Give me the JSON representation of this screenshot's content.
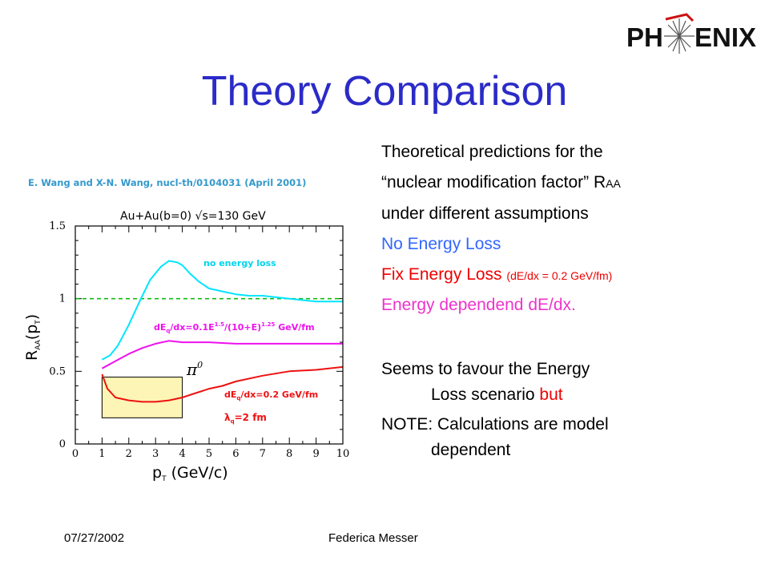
{
  "slide": {
    "title": "Theory Comparison",
    "logo": {
      "left": "PH",
      "right": "ENIX"
    },
    "citation": "E. Wang and X-N. Wang, nucl-th/0104031 (April 2001)",
    "footer": {
      "date": "07/27/2002",
      "author": "Federica Messer"
    }
  },
  "bullets": {
    "line1": "Theoretical predictions for the",
    "line2": "“nuclear modification factor” R",
    "line2_sub": "AA",
    "line3": " under different assumptions",
    "no_loss": "No Energy Loss",
    "fix_loss": "Fix Energy Loss ",
    "fix_loss_note": "(dE/dx = 0.2 GeV/fm)",
    "energy_dep": "Energy dependend dE/dx.",
    "seems_1": "Seems to favour the Energy",
    "seems_2": "Loss scenario ",
    "seems_but": "but",
    "note_1": "NOTE: Calculations are model",
    "note_2": "dependent"
  },
  "chart_data": {
    "type": "line",
    "header": "Au+Au(b=0)  √s=130 GeV",
    "xlabel": "p",
    "xlabel_sub": "T",
    "xlabel_unit": " (GeV/c)",
    "ylabel": "R",
    "ylabel_sub": "AA",
    "ylabel_arg": "(p",
    "ylabel_arg_sub": "T",
    "ylabel_close": ")",
    "xlim": [
      0,
      10
    ],
    "ylim": [
      0,
      1.5
    ],
    "xticks": [
      "0",
      "1",
      "2",
      "3",
      "4",
      "5",
      "6",
      "7",
      "8",
      "9",
      "10"
    ],
    "yticks": [
      {
        "v": 0,
        "label": "0"
      },
      {
        "v": 0.5,
        "label": "0.5"
      },
      {
        "v": 1,
        "label": "1"
      },
      {
        "v": 1.5,
        "label": "1.5"
      }
    ],
    "reference_line": {
      "y": 1.0,
      "color": "#11bb11",
      "style": "dashed"
    },
    "series": [
      {
        "key": "no_loss",
        "color": "#00e5ff",
        "x": [
          1.0,
          1.3,
          1.6,
          2.0,
          2.4,
          2.8,
          3.2,
          3.5,
          3.8,
          4.0,
          4.3,
          4.6,
          5.0,
          5.5,
          6.0,
          6.5,
          7.0,
          7.5,
          8.0,
          8.5,
          9.0,
          9.5,
          10.0
        ],
        "y": [
          0.58,
          0.61,
          0.68,
          0.82,
          0.98,
          1.13,
          1.22,
          1.26,
          1.25,
          1.23,
          1.17,
          1.12,
          1.07,
          1.05,
          1.03,
          1.02,
          1.02,
          1.01,
          1.0,
          0.99,
          0.98,
          0.98,
          0.98
        ]
      },
      {
        "key": "energy_dep",
        "color": "#ee11ee",
        "x": [
          1.0,
          1.5,
          2.0,
          2.5,
          3.0,
          3.5,
          4.0,
          5.0,
          6.0,
          7.0,
          8.0,
          9.0,
          10.0
        ],
        "y": [
          0.52,
          0.57,
          0.62,
          0.66,
          0.69,
          0.71,
          0.7,
          0.7,
          0.69,
          0.69,
          0.69,
          0.69,
          0.69
        ]
      },
      {
        "key": "fix_loss",
        "color": "#ee1111",
        "x": [
          1.0,
          1.2,
          1.5,
          2.0,
          2.5,
          3.0,
          3.5,
          4.0,
          4.5,
          5.0,
          5.5,
          6.0,
          7.0,
          8.0,
          9.0,
          10.0
        ],
        "y": [
          0.48,
          0.38,
          0.32,
          0.3,
          0.29,
          0.29,
          0.3,
          0.32,
          0.35,
          0.38,
          0.4,
          0.43,
          0.47,
          0.5,
          0.51,
          0.53
        ]
      }
    ],
    "labels": {
      "no_loss": "no energy loss",
      "energy_dep_a": "dE",
      "energy_dep_a_sub": "q",
      "energy_dep_b": "/dx=0.1E",
      "energy_dep_b_sup": "1.5",
      "energy_dep_c": "/(10+E)",
      "energy_dep_c_sup": "1.25",
      "energy_dep_d": " GeV/fm",
      "fix_loss_a": "dE",
      "fix_loss_a_sub": "q",
      "fix_loss_b": "/dx=0.2 GeV/fm",
      "lambda": "λ",
      "lambda_sub": "q",
      "lambda_val": "=2 fm",
      "pi_symbol": "π",
      "pi_sup": "0"
    },
    "highlight_box": {
      "x": [
        1.0,
        4.0
      ],
      "y": [
        0.18,
        0.46
      ],
      "color": "#fdf5b5"
    }
  }
}
